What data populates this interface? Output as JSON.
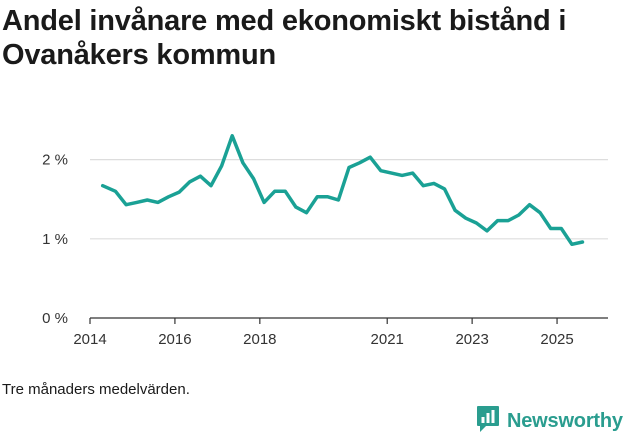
{
  "page": {
    "title": "Andel invånare med ekonomiskt bistånd i Ovanåkers kommun",
    "caption": "Tre månaders medelvärden.",
    "brand": "Newsworthy"
  },
  "colors": {
    "line": "#1aa195",
    "grid": "#dddddd",
    "axis": "#333333",
    "brand": "#2a9d8f"
  },
  "chart_data": {
    "type": "line",
    "title": "Andel invånare med ekonomiskt bistånd i Ovanåkers kommun",
    "xlabel": "",
    "ylabel": "",
    "unit": "%",
    "xlim": [
      2014.0,
      2026.2
    ],
    "ylim": [
      0,
      2.5
    ],
    "grid": true,
    "y_ticks": [
      {
        "value": 0,
        "label": "0 %"
      },
      {
        "value": 1,
        "label": "1 %"
      },
      {
        "value": 2,
        "label": "2 %"
      }
    ],
    "x_ticks": [
      {
        "value": 2014,
        "label": "2014"
      },
      {
        "value": 2016,
        "label": "2016"
      },
      {
        "value": 2018,
        "label": "2018"
      },
      {
        "value": 2021,
        "label": "2021"
      },
      {
        "value": 2023,
        "label": "2023"
      },
      {
        "value": 2025,
        "label": "2025"
      }
    ],
    "series": [
      {
        "name": "Andel invånare med ekonomiskt bistånd",
        "points": [
          [
            2014.3,
            1.67
          ],
          [
            2014.6,
            1.6
          ],
          [
            2014.85,
            1.43
          ],
          [
            2015.1,
            1.46
          ],
          [
            2015.35,
            1.49
          ],
          [
            2015.6,
            1.46
          ],
          [
            2015.85,
            1.53
          ],
          [
            2016.1,
            1.59
          ],
          [
            2016.35,
            1.72
          ],
          [
            2016.6,
            1.79
          ],
          [
            2016.85,
            1.67
          ],
          [
            2017.1,
            1.92
          ],
          [
            2017.35,
            2.3
          ],
          [
            2017.6,
            1.96
          ],
          [
            2017.85,
            1.76
          ],
          [
            2018.1,
            1.46
          ],
          [
            2018.35,
            1.6
          ],
          [
            2018.6,
            1.6
          ],
          [
            2018.85,
            1.4
          ],
          [
            2019.1,
            1.33
          ],
          [
            2019.35,
            1.53
          ],
          [
            2019.6,
            1.53
          ],
          [
            2019.85,
            1.49
          ],
          [
            2020.1,
            1.9
          ],
          [
            2020.35,
            1.96
          ],
          [
            2020.6,
            2.03
          ],
          [
            2020.85,
            1.86
          ],
          [
            2021.1,
            1.83
          ],
          [
            2021.35,
            1.8
          ],
          [
            2021.6,
            1.83
          ],
          [
            2021.85,
            1.67
          ],
          [
            2022.1,
            1.7
          ],
          [
            2022.35,
            1.63
          ],
          [
            2022.6,
            1.36
          ],
          [
            2022.85,
            1.26
          ],
          [
            2023.1,
            1.2
          ],
          [
            2023.35,
            1.1
          ],
          [
            2023.6,
            1.23
          ],
          [
            2023.85,
            1.23
          ],
          [
            2024.1,
            1.3
          ],
          [
            2024.35,
            1.43
          ],
          [
            2024.6,
            1.33
          ],
          [
            2024.85,
            1.13
          ],
          [
            2025.1,
            1.13
          ],
          [
            2025.35,
            0.93
          ],
          [
            2025.6,
            0.96
          ]
        ]
      }
    ]
  }
}
